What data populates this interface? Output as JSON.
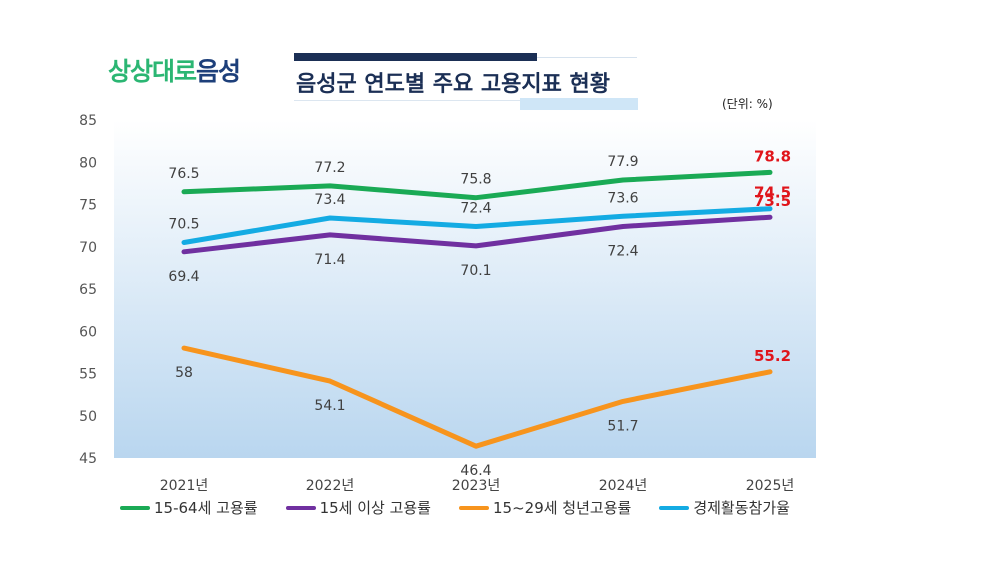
{
  "logo": {
    "part1": "상상대로",
    "part2": "음성"
  },
  "title": "음성군 연도별 주요 고용지표 현황",
  "unit_label": "(단위: %)",
  "colors": {
    "green": "#1aaa55",
    "purple": "#7030a0",
    "orange": "#f7941d",
    "blue": "#14abe3",
    "highlight": "#e0151b"
  },
  "chart_data": {
    "type": "line",
    "categories": [
      "2021년",
      "2022년",
      "2023년",
      "2024년",
      "2025년"
    ],
    "ylim": [
      45,
      85
    ],
    "yticks": [
      45,
      50,
      55,
      60,
      65,
      70,
      75,
      80,
      85
    ],
    "series": [
      {
        "name": "15-64세 고용률",
        "color": "#1aaa55",
        "values": [
          76.5,
          77.2,
          75.8,
          77.9,
          78.8
        ],
        "labels": [
          "76.5",
          "77.2",
          "75.8",
          "77.9",
          "78.8"
        ],
        "label_pos": "above"
      },
      {
        "name": "15세 이상 고용률",
        "color": "#7030a0",
        "values": [
          69.4,
          71.4,
          70.1,
          72.4,
          73.5
        ],
        "labels": [
          "69.4",
          "71.4",
          "70.1",
          "72.4",
          "73.5"
        ],
        "label_pos": "below"
      },
      {
        "name": "15~29세 청년고용률",
        "color": "#f7941d",
        "values": [
          58,
          54.1,
          46.4,
          51.7,
          55.2
        ],
        "labels": [
          "58",
          "54.1",
          "46.4",
          "51.7",
          "55.2"
        ],
        "label_pos": "below"
      },
      {
        "name": "경제활동참가율",
        "color": "#14abe3",
        "values": [
          70.5,
          73.4,
          72.4,
          73.6,
          74.5
        ],
        "labels": [
          "70.5",
          "73.4",
          "72.4",
          "73.6",
          "74.5"
        ],
        "label_pos": "above"
      }
    ],
    "legend_position": "bottom",
    "grid": false
  }
}
